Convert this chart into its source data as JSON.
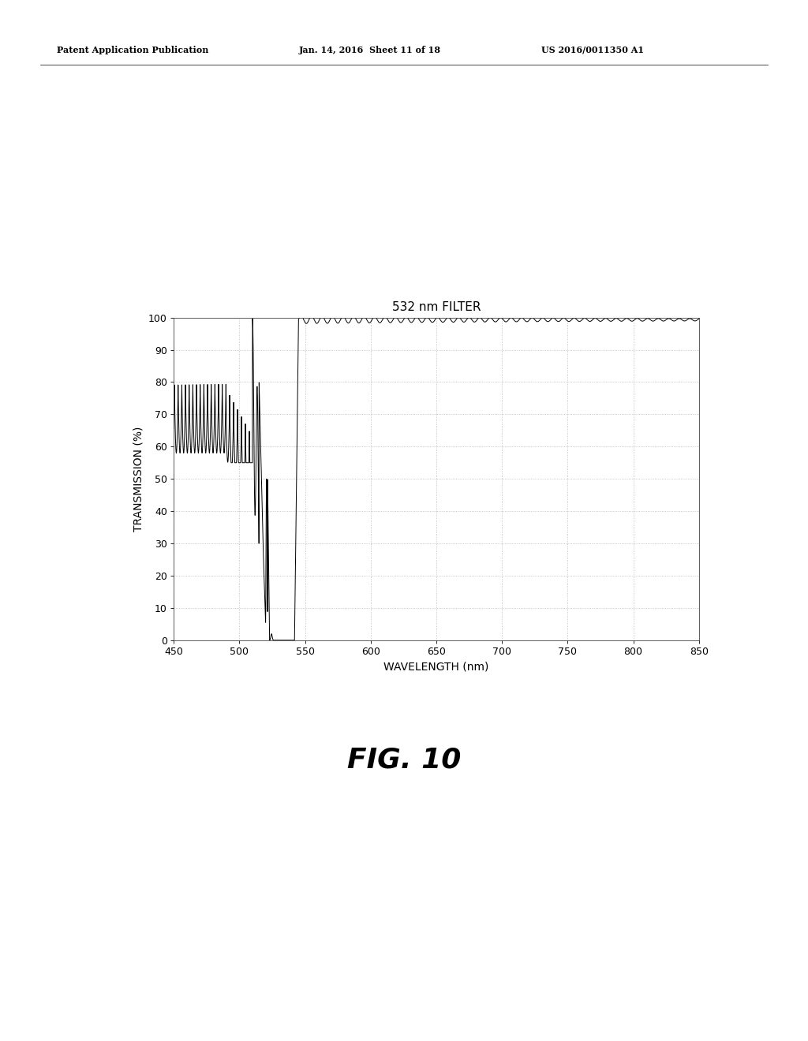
{
  "title": "532 nm FILTER",
  "xlabel": "WAVELENGTH (nm)",
  "ylabel": "TRANSMISSION (%)",
  "xlim": [
    450,
    850
  ],
  "ylim": [
    0,
    100
  ],
  "xticks": [
    450,
    500,
    550,
    600,
    650,
    700,
    750,
    800,
    850
  ],
  "yticks": [
    0,
    10,
    20,
    30,
    40,
    50,
    60,
    70,
    80,
    90,
    100
  ],
  "background_color": "#ffffff",
  "line_color": "#000000",
  "grid_color": "#999999",
  "header_left": "Patent Application Publication",
  "header_mid": "Jan. 14, 2016  Sheet 11 of 18",
  "header_right": "US 2016/0011350 A1",
  "fig_label": "FIG. 10",
  "title_fontsize": 11,
  "label_fontsize": 10,
  "tick_fontsize": 9,
  "header_fontsize": 8
}
